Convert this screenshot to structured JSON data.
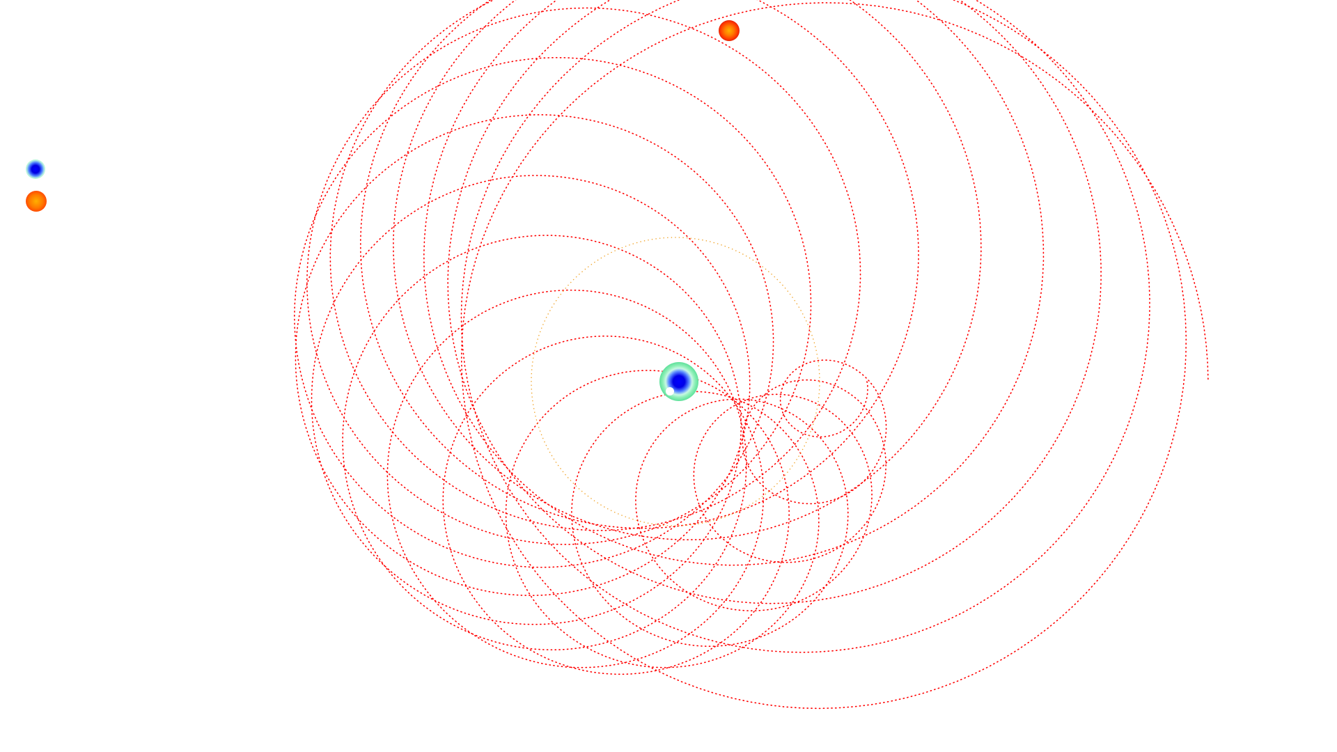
{
  "legend": {
    "items": [
      {
        "name": "earth-swatch",
        "icon": "earth-icon"
      },
      {
        "name": "sun-swatch",
        "icon": "sun-icon"
      }
    ]
  },
  "simulation": {
    "view": "geocentric",
    "bodies": {
      "earth": {
        "icon": "earth-icon",
        "colors": [
          "#0000ff",
          "#8ef0b8"
        ]
      },
      "moon": {
        "icon": "moon-icon",
        "color": "#ffffff"
      },
      "sun": {
        "icon": "sun-icon",
        "colors": [
          "#ffb000",
          "#ff3a00"
        ]
      }
    },
    "trails": {
      "sun_path": {
        "color": "#ff0000",
        "style": "dotted"
      },
      "reference_orbit": {
        "color": "#f0a020",
        "style": "dotted"
      }
    }
  }
}
